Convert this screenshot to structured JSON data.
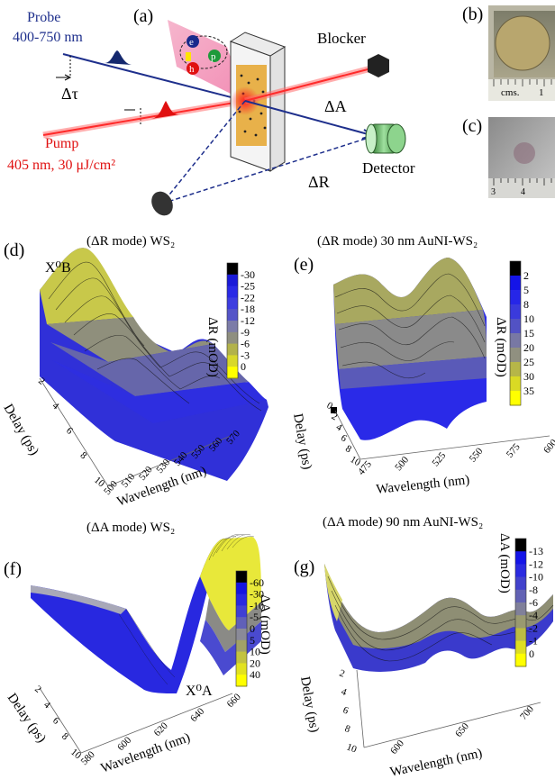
{
  "panels": {
    "a": {
      "letter": "(a)",
      "probe_label": "Probe",
      "probe_range": "400-750 nm",
      "delay_symbol": "Δτ",
      "pump_label": "Pump",
      "pump_spec": "405 nm, 30  μJ/cm²",
      "blocker_label": "Blocker",
      "deltaA_label": "ΔA",
      "deltaR_label": "ΔR",
      "detector_label": "Detector",
      "carrier_e": "e",
      "carrier_h": "h",
      "carrier_p": "p"
    },
    "b": {
      "letter": "(b)",
      "ruler_text": "cms.",
      "ruler_tick": "1"
    },
    "c": {
      "letter": "(c)",
      "ruler_ticks": [
        "3",
        "4"
      ]
    },
    "d": {
      "letter": "(d)",
      "title": "(ΔR mode) WS₂",
      "peak_label": "X⁰B",
      "colorbar_label": "ΔR (mOD)",
      "colorbar_ticks": [
        "-30",
        "-25",
        "-22",
        "-18",
        "-12",
        "-9",
        "-6",
        "-3",
        "0"
      ],
      "colorbar_colors": [
        "#000000",
        "#1a1ad8",
        "#2a2ae6",
        "#3d3de0",
        "#5555c8",
        "#7c7ca8",
        "#8f8f80",
        "#b2b24a",
        "#d8d82a",
        "#ffff00"
      ],
      "xlabel": "Wavelength (nm)",
      "ylabel": "Delay (ps)",
      "xticks": [
        "500",
        "510",
        "520",
        "530",
        "540",
        "550",
        "560",
        "570"
      ],
      "yticks": [
        "2",
        "4",
        "6",
        "8",
        "10"
      ]
    },
    "e": {
      "letter": "(e)",
      "title": "(ΔR mode) 30 nm AuNI-WS₂",
      "colorbar_label": "ΔR (mOD)",
      "colorbar_ticks": [
        "2",
        "5",
        "8",
        "10",
        "15",
        "20",
        "25",
        "30",
        "35"
      ],
      "colorbar_colors": [
        "#000000",
        "#1414e8",
        "#2626e8",
        "#3a3adc",
        "#5252c4",
        "#7878a4",
        "#909080",
        "#b6b648",
        "#dada24",
        "#ffff00"
      ],
      "xlabel": "Wavelength (nm)",
      "ylabel": "Delay (ps)",
      "xticks": [
        "475",
        "500",
        "525",
        "550",
        "575",
        "600"
      ],
      "yticks": [
        "0",
        "2",
        "4",
        "6",
        "8",
        "10"
      ]
    },
    "f": {
      "letter": "(f)",
      "title": "(ΔA mode) WS₂",
      "peak_label": "X⁰A",
      "colorbar_label": "ΔA (mOD)",
      "colorbar_ticks": [
        "-60",
        "-30",
        "-10",
        "-5",
        "0",
        "5",
        "10",
        "20",
        "40"
      ],
      "colorbar_colors": [
        "#000000",
        "#1414e0",
        "#2828e0",
        "#4040d4",
        "#6060b8",
        "#8a8a98",
        "#a2a268",
        "#c2c240",
        "#e2e220",
        "#ffff00"
      ],
      "xlabel": "Wavelength (nm)",
      "ylabel": "Delay (ps)",
      "xticks": [
        "580",
        "600",
        "620",
        "640",
        "660"
      ],
      "yticks": [
        "2",
        "4",
        "6",
        "8",
        "10"
      ]
    },
    "g": {
      "letter": "(g)",
      "title": "(ΔA mode) 90 nm AuNI-WS₂",
      "colorbar_label": "ΔA (mOD)",
      "colorbar_ticks": [
        "-13",
        "-12",
        "-10",
        "-8",
        "-6",
        "-4",
        "-2",
        "-1",
        "0"
      ],
      "colorbar_colors": [
        "#000000",
        "#1414e8",
        "#2a2ae0",
        "#4242cc",
        "#6262b4",
        "#80809a",
        "#9a9a70",
        "#bcbc44",
        "#dede22",
        "#ffff00"
      ],
      "xlabel": "Wavelength (nm)",
      "ylabel": "Delay (ps)",
      "xticks": [
        "600",
        "650",
        "700"
      ],
      "yticks": [
        "2",
        "4",
        "6",
        "8",
        "10"
      ]
    }
  }
}
